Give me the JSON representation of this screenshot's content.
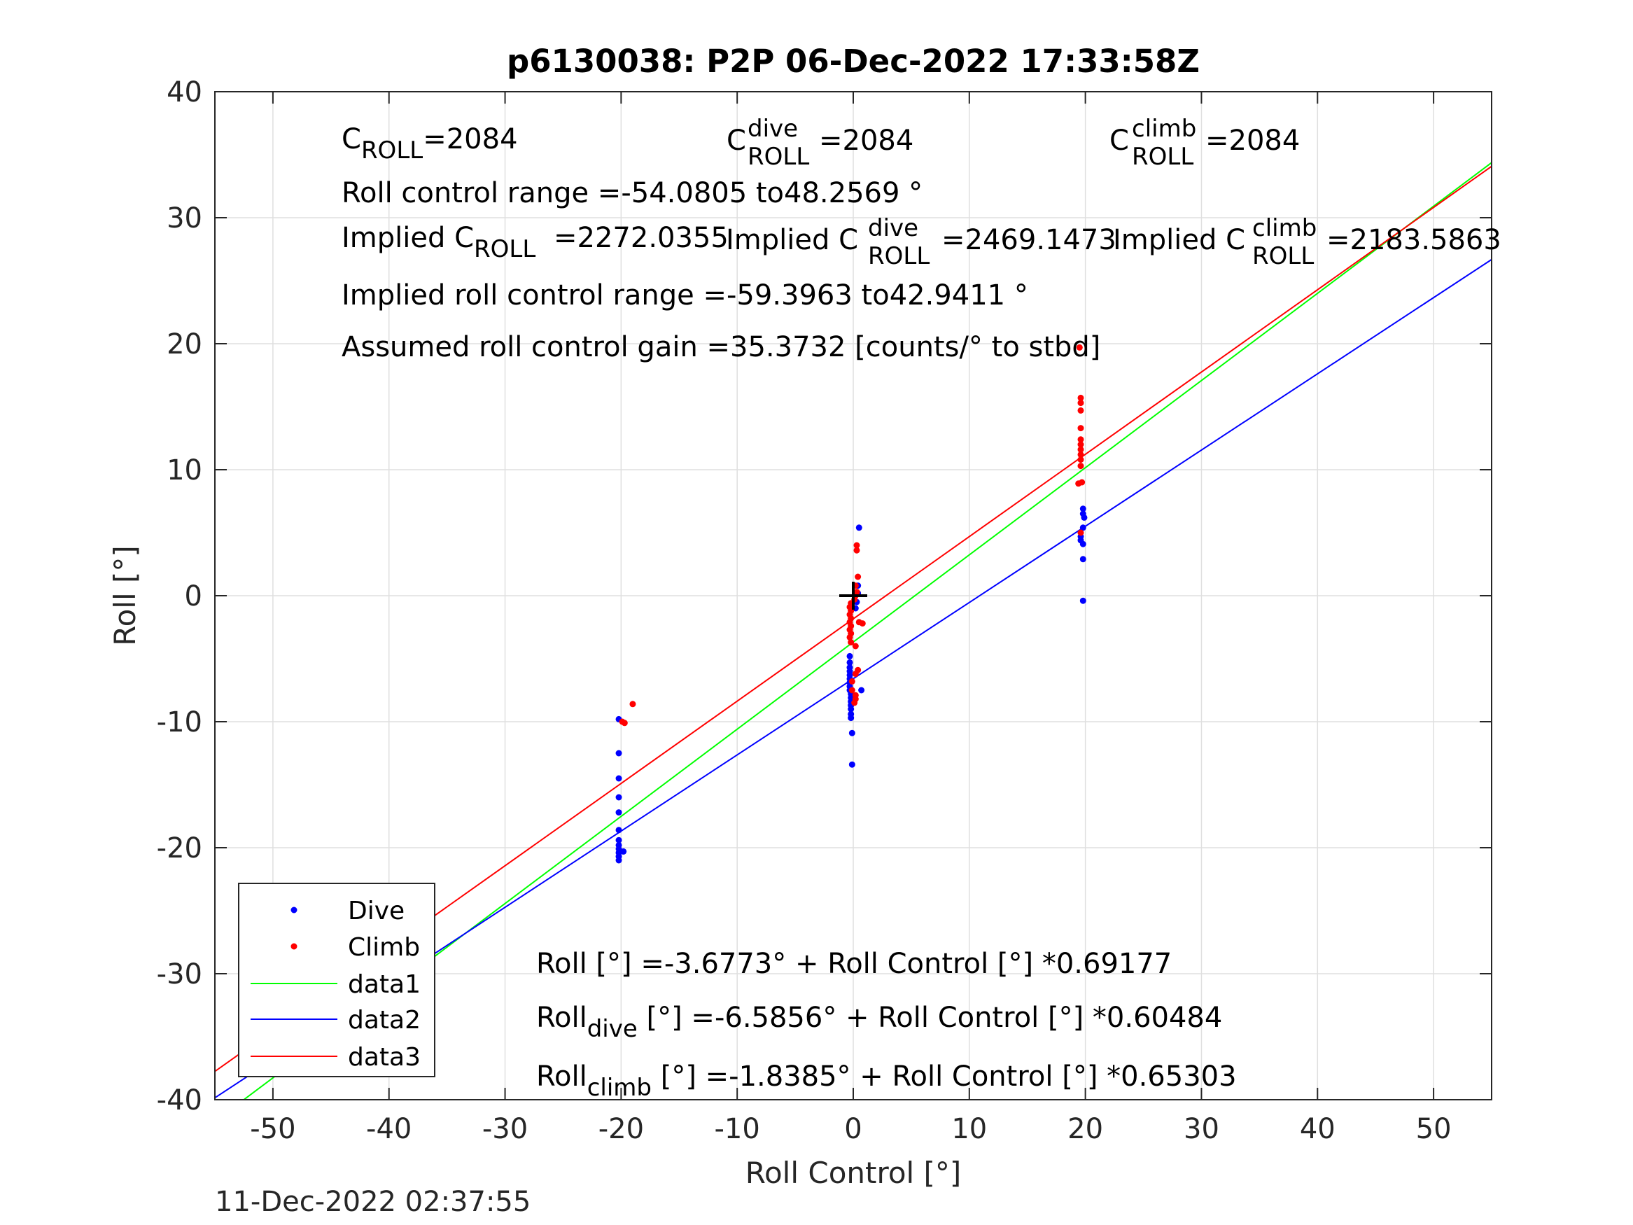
{
  "chart_data": {
    "type": "scatter",
    "title": "p6130038: P2P 06-Dec-2022 17:33:58Z",
    "xlabel": "Roll Control [°]",
    "ylabel": "Roll [°]",
    "xlim": [
      -55,
      55
    ],
    "ylim": [
      -40,
      40
    ],
    "xticks": [
      -50,
      -40,
      -30,
      -20,
      -10,
      0,
      10,
      20,
      30,
      40,
      50
    ],
    "yticks": [
      -40,
      -30,
      -20,
      -10,
      0,
      10,
      20,
      30,
      40
    ],
    "grid": true,
    "legend_position": "bottom-left",
    "series": [
      {
        "name": "Dive",
        "kind": "points",
        "color": "#0000ff",
        "points": [
          [
            -20.2,
            -9.8
          ],
          [
            -20.2,
            -12.5
          ],
          [
            -20.2,
            -14.5
          ],
          [
            -20.2,
            -16
          ],
          [
            -20.2,
            -17.2
          ],
          [
            -20.2,
            -18.6
          ],
          [
            -20.2,
            -19.4
          ],
          [
            -20.2,
            -19.8
          ],
          [
            -20.2,
            -20.1
          ],
          [
            -20.2,
            -20.4
          ],
          [
            -20.2,
            -20.7
          ],
          [
            -20.2,
            -21
          ],
          [
            -19.8,
            -20.3
          ],
          [
            0.5,
            5.4
          ],
          [
            0.4,
            0.8
          ],
          [
            0.4,
            0.2
          ],
          [
            0.3,
            -0.5
          ],
          [
            0.2,
            -1
          ],
          [
            -0.3,
            -4.8
          ],
          [
            -0.3,
            -5.3
          ],
          [
            -0.3,
            -5.7
          ],
          [
            -0.3,
            -6
          ],
          [
            -0.3,
            -6.3
          ],
          [
            -0.3,
            -6.6
          ],
          [
            -0.3,
            -6.9
          ],
          [
            -0.3,
            -7.2
          ],
          [
            -0.3,
            -7.5
          ],
          [
            -0.2,
            -7.8
          ],
          [
            -0.2,
            -8.1
          ],
          [
            -0.2,
            -8.4
          ],
          [
            -0.2,
            -8.7
          ],
          [
            -0.2,
            -9
          ],
          [
            -0.2,
            -9.4
          ],
          [
            -0.2,
            -9.7
          ],
          [
            0.7,
            -7.5
          ],
          [
            -0.1,
            -10.9
          ],
          [
            -0.1,
            -13.4
          ],
          [
            19.8,
            6.9
          ],
          [
            19.8,
            6.5
          ],
          [
            19.9,
            6.2
          ],
          [
            19.8,
            5.4
          ],
          [
            19.6,
            4.7
          ],
          [
            19.6,
            4.4
          ],
          [
            19.8,
            4.1
          ],
          [
            19.8,
            2.9
          ],
          [
            19.8,
            -0.4
          ]
        ]
      },
      {
        "name": "Climb",
        "kind": "points",
        "color": "#ff0000",
        "points": [
          [
            -19.9,
            -10
          ],
          [
            -19.7,
            -10.1
          ],
          [
            -19,
            -8.6
          ],
          [
            0.3,
            4
          ],
          [
            0.3,
            3.6
          ],
          [
            0.4,
            1.5
          ],
          [
            0.2,
            0.8
          ],
          [
            0.3,
            0.3
          ],
          [
            0.2,
            0
          ],
          [
            0.1,
            -0.3
          ],
          [
            -0.2,
            -0.6
          ],
          [
            -0.3,
            -0.9
          ],
          [
            -0.2,
            -1.2
          ],
          [
            -0.3,
            -1.5
          ],
          [
            -0.2,
            -1.8
          ],
          [
            -0.3,
            -2.1
          ],
          [
            -0.2,
            -2.4
          ],
          [
            -0.3,
            -2.7
          ],
          [
            -0.2,
            -3
          ],
          [
            -0.3,
            -3.3
          ],
          [
            -0.2,
            -3.7
          ],
          [
            0.5,
            -2.1
          ],
          [
            0.8,
            -2.2
          ],
          [
            0.2,
            -4
          ],
          [
            0.4,
            -5.9
          ],
          [
            0.2,
            -6.2
          ],
          [
            -0.1,
            -6.8
          ],
          [
            -0.1,
            -7.5
          ],
          [
            0.2,
            -7.9
          ],
          [
            0.2,
            -8.2
          ],
          [
            0.1,
            -8.5
          ],
          [
            19.5,
            19.7
          ],
          [
            19.6,
            15.7
          ],
          [
            19.6,
            15.3
          ],
          [
            19.6,
            14.7
          ],
          [
            19.6,
            13.3
          ],
          [
            19.6,
            12.4
          ],
          [
            19.6,
            12
          ],
          [
            19.6,
            11.6
          ],
          [
            19.6,
            11.2
          ],
          [
            19.6,
            10.8
          ],
          [
            19.6,
            10.3
          ],
          [
            19.7,
            9
          ],
          [
            19.4,
            8.9
          ],
          [
            19.6,
            5
          ]
        ]
      },
      {
        "name": "data1",
        "kind": "line",
        "color": "#00ff00",
        "intercept": -3.6773,
        "slope": 0.69177
      },
      {
        "name": "data2",
        "kind": "line",
        "color": "#0000ff",
        "intercept": -6.5856,
        "slope": 0.60484
      },
      {
        "name": "data3",
        "kind": "line",
        "color": "#ff0000",
        "intercept": -1.8385,
        "slope": 0.65303
      }
    ],
    "marker": {
      "x": 0,
      "y": 0,
      "symbol": "+",
      "color": "#000000"
    },
    "annotations": {
      "c_roll_prefix": "C",
      "roll_sub": "ROLL",
      "c_roll_value": "=2084",
      "dive_sup": "dive",
      "c_dive_value": "=2084",
      "climb_sup": "climb",
      "c_climb_value": "=2084",
      "range_line": "Roll control range =-54.0805 to48.2569 °",
      "implied_prefix": "Implied C",
      "implied_c_roll_value": "=2272.0355",
      "implied_c_dive_value": "=2469.1473",
      "implied_c_climb_value": "=2183.5863",
      "implied_range_line": "Implied roll control range =-59.3963 to42.9411 °",
      "gain_line": "Assumed roll control gain =35.3732 [counts/° to stbd]",
      "fit_all": "Roll [°] =-3.6773° + Roll Control [°] *0.69177",
      "fit_dive_prefix": "Roll",
      "fit_dive_sub": "dive",
      "fit_dive_rest": " [°] =-6.5856° + Roll Control [°] *0.60484",
      "fit_climb_prefix": "Roll",
      "fit_climb_sub": "climb",
      "fit_climb_rest": " [°] =-1.8385° + Roll Control [°] *0.65303"
    },
    "timestamp": "11-Dec-2022 02:37:55"
  }
}
